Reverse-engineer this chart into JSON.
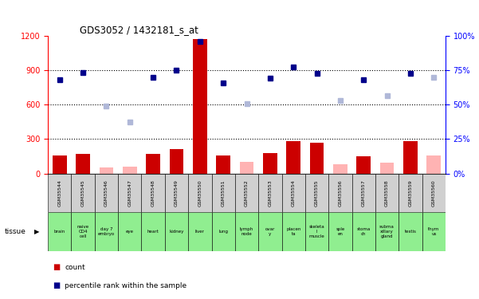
{
  "title": "GDS3052 / 1432181_s_at",
  "samples": [
    "GSM35544",
    "GSM35545",
    "GSM35546",
    "GSM35547",
    "GSM35548",
    "GSM35549",
    "GSM35550",
    "GSM35551",
    "GSM35552",
    "GSM35553",
    "GSM35554",
    "GSM35555",
    "GSM35556",
    "GSM35557",
    "GSM35558",
    "GSM35559",
    "GSM35560"
  ],
  "tissues": [
    "brain",
    "naive\nCD4\ncell",
    "day 7\nembryо",
    "eye",
    "heart",
    "kidney",
    "liver",
    "lung",
    "lymph\nnode",
    "ovar\ny",
    "placen\nta",
    "skeleta\nl\nmuscle",
    "sple\nen",
    "stoma\nch",
    "subma\nxillary\ngland",
    "testis",
    "thym\nus"
  ],
  "count_values": [
    160,
    170,
    null,
    null,
    170,
    210,
    1170,
    155,
    null,
    175,
    280,
    270,
    null,
    150,
    null,
    285,
    null
  ],
  "count_absent": [
    null,
    null,
    50,
    60,
    null,
    null,
    null,
    null,
    100,
    null,
    null,
    null,
    80,
    null,
    95,
    null,
    160
  ],
  "rank_values": [
    820,
    880,
    null,
    null,
    840,
    900,
    1150,
    790,
    null,
    830,
    930,
    870,
    null,
    820,
    null,
    870,
    null
  ],
  "rank_absent": [
    null,
    null,
    590,
    450,
    null,
    null,
    null,
    null,
    610,
    null,
    null,
    null,
    640,
    null,
    680,
    null,
    840
  ],
  "ylim_left": [
    0,
    1200
  ],
  "ylim_right": [
    0,
    100
  ],
  "yticks_left": [
    0,
    300,
    600,
    900,
    1200
  ],
  "yticks_right": [
    0,
    25,
    50,
    75,
    100
  ],
  "bar_color": "#cc0000",
  "bar_absent_color": "#ffb3b3",
  "dot_color": "#00008b",
  "dot_absent_color": "#b0b8d8",
  "tissue_bg": "#90ee90",
  "sample_bg": "#d0d0d0",
  "chart_bg": "#ffffff"
}
